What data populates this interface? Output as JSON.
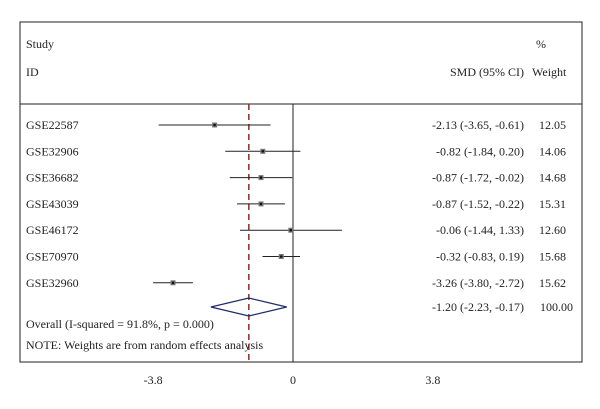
{
  "header": {
    "study_line1": "Study",
    "study_line2": "ID",
    "effect_label": "SMD (95% CI)",
    "weight_line1": "%",
    "weight_line2": "Weight"
  },
  "chart_data": {
    "type": "forest",
    "x_ticks": [
      {
        "value": -3.8,
        "label": "-3.8"
      },
      {
        "value": 0,
        "label": "0"
      },
      {
        "value": 3.8,
        "label": "3.8"
      }
    ],
    "null_line": 0,
    "studies": [
      {
        "id": "GSE22587",
        "smd": -2.13,
        "lower": -3.65,
        "upper": -0.61,
        "ci_text": "-2.13 (-3.65, -0.61)",
        "weight": "12.05"
      },
      {
        "id": "GSE32906",
        "smd": -0.82,
        "lower": -1.84,
        "upper": 0.2,
        "ci_text": "-0.82 (-1.84, 0.20)",
        "weight": "14.06"
      },
      {
        "id": "GSE36682",
        "smd": -0.87,
        "lower": -1.72,
        "upper": -0.02,
        "ci_text": "-0.87 (-1.72, -0.02)",
        "weight": "14.68"
      },
      {
        "id": "GSE43039",
        "smd": -0.87,
        "lower": -1.52,
        "upper": -0.22,
        "ci_text": "-0.87 (-1.52, -0.22)",
        "weight": "15.31"
      },
      {
        "id": "GSE46172",
        "smd": -0.06,
        "lower": -1.44,
        "upper": 1.33,
        "ci_text": "-0.06 (-1.44, 1.33)",
        "weight": "12.60"
      },
      {
        "id": "GSE70970",
        "smd": -0.32,
        "lower": -0.83,
        "upper": 0.19,
        "ci_text": "-0.32 (-0.83, 0.19)",
        "weight": "15.68"
      },
      {
        "id": "GSE32960",
        "smd": -3.26,
        "lower": -3.8,
        "upper": -2.72,
        "ci_text": "-3.26 (-3.80, -2.72)",
        "weight": "15.62"
      }
    ],
    "overall": {
      "label": "Overall (I-squared = 91.8%, p = 0.000)",
      "smd": -1.2,
      "lower": -2.23,
      "upper": -0.17,
      "ci_text": "-1.20 (-2.23, -0.17)",
      "weight": "100.00"
    },
    "note": "NOTE: Weights are from random effects analysis",
    "colors": {
      "diamond": "#1f2a6b",
      "overall_line": "#8b2b2b",
      "lines": "#222222"
    }
  }
}
